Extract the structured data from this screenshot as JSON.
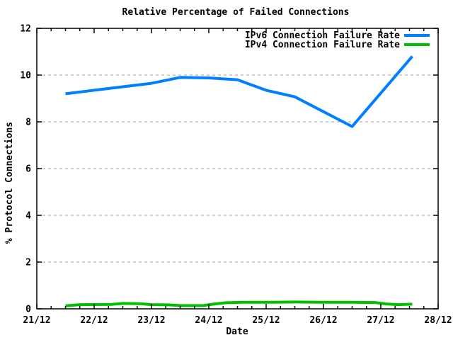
{
  "chart_data": {
    "type": "line",
    "title": "Relative Percentage of Failed Connections",
    "xlabel": "Date",
    "ylabel": "% Protocol Connections",
    "x_tick_labels": [
      "21/12",
      "22/12",
      "23/12",
      "24/12",
      "25/12",
      "26/12",
      "27/12",
      "28/12"
    ],
    "x_major_tick_days": [
      0,
      1,
      2,
      3,
      4,
      5,
      6,
      7
    ],
    "x_minor_tick_step_days": 0.25,
    "x_range_days": [
      0,
      7
    ],
    "y_ticks": [
      0,
      2,
      4,
      6,
      8,
      10,
      12
    ],
    "ylim": [
      0,
      12
    ],
    "grid_y_values": [
      2,
      4,
      6,
      8,
      10
    ],
    "grid_style": "dashed",
    "legend_position": "top-right-inside",
    "series": [
      {
        "name": "IPv6 Connection Failure Rate",
        "color": "#0080ff",
        "points": [
          [
            0.5,
            9.2
          ],
          [
            1.0,
            9.35
          ],
          [
            1.5,
            9.5
          ],
          [
            2.0,
            9.65
          ],
          [
            2.5,
            9.9
          ],
          [
            3.0,
            9.88
          ],
          [
            3.5,
            9.8
          ],
          [
            4.0,
            9.35
          ],
          [
            4.5,
            9.07
          ],
          [
            5.5,
            7.8
          ],
          [
            6.55,
            10.8
          ]
        ]
      },
      {
        "name": "IPv4 Connection Failure Rate",
        "color": "#00c000",
        "points": [
          [
            0.5,
            0.13
          ],
          [
            0.75,
            0.18
          ],
          [
            1.3,
            0.19
          ],
          [
            1.5,
            0.23
          ],
          [
            1.8,
            0.22
          ],
          [
            2.0,
            0.18
          ],
          [
            2.3,
            0.17
          ],
          [
            2.5,
            0.14
          ],
          [
            2.9,
            0.14
          ],
          [
            3.1,
            0.21
          ],
          [
            3.3,
            0.26
          ],
          [
            3.6,
            0.28
          ],
          [
            4.0,
            0.28
          ],
          [
            4.5,
            0.29
          ],
          [
            5.0,
            0.28
          ],
          [
            5.5,
            0.28
          ],
          [
            5.9,
            0.27
          ],
          [
            6.1,
            0.21
          ],
          [
            6.3,
            0.18
          ],
          [
            6.55,
            0.2
          ]
        ]
      }
    ]
  },
  "colors": {
    "axis": "#000000",
    "grid": "#a0a0a0",
    "background": "#ffffff",
    "ipv6_line": "#0080ff",
    "ipv4_line": "#00c000"
  }
}
